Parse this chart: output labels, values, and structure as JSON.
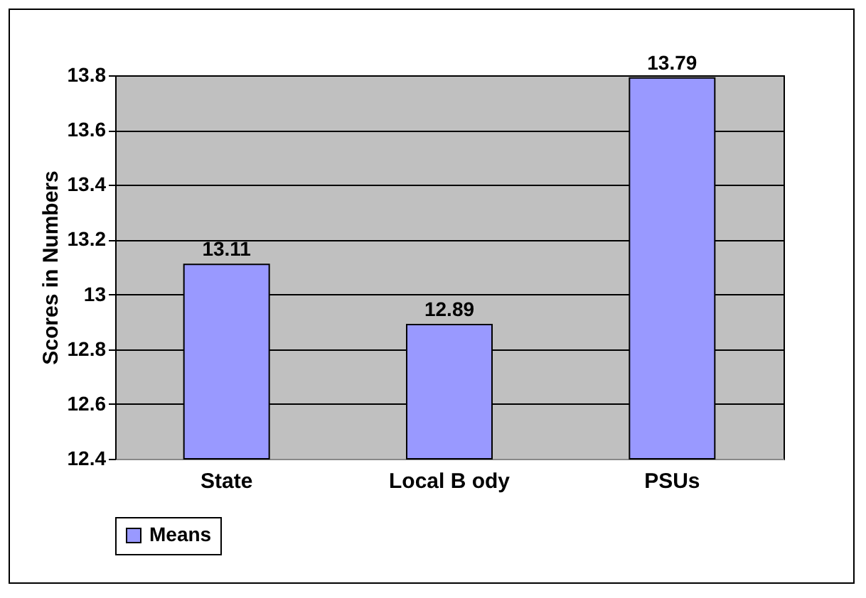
{
  "chart_data": {
    "type": "bar",
    "ylabel": "Scores in Numbers",
    "categories": [
      "State",
      "Local B ody",
      "PSUs"
    ],
    "series": [
      {
        "name": "Means",
        "color": "#9999ff",
        "values": [
          13.11,
          12.89,
          13.79
        ]
      }
    ],
    "ylim": [
      12.4,
      13.8
    ],
    "yticks": [
      12.4,
      12.6,
      12.8,
      13,
      13.2,
      13.4,
      13.6,
      13.8
    ],
    "grid": "y",
    "legend": "bottom",
    "data_labels": true
  }
}
